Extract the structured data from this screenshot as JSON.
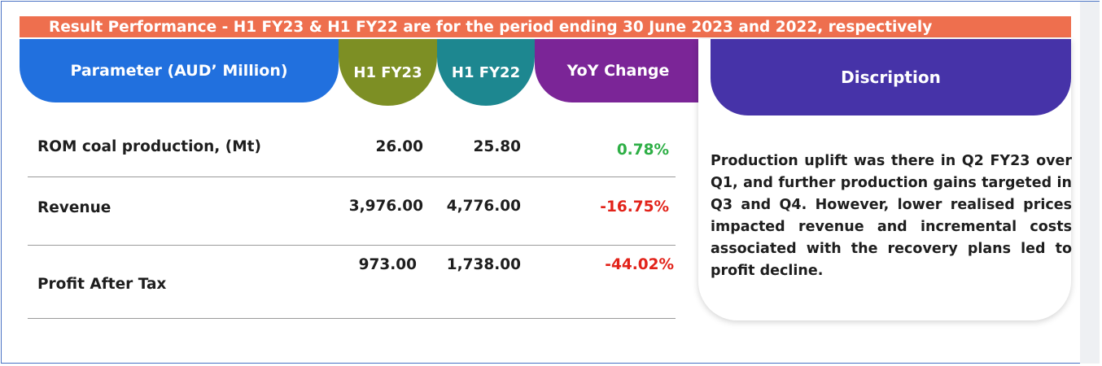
{
  "banner": {
    "text": "Result Performance - H1 FY23 & H1 FY22 are for the period ending 30 June 2023 and 2022, respectively"
  },
  "headers": {
    "parameter": "Parameter (AUD’ Million)",
    "h1fy23": "H1 FY23",
    "h1fy22": "H1 FY22",
    "yoy": "YoY Change",
    "description": "Discription"
  },
  "rows": [
    {
      "parameter": "ROM coal production, (Mt)",
      "h1fy23": "26.00",
      "h1fy22": "25.80",
      "yoy": "0.78%"
    },
    {
      "parameter": "Revenue",
      "h1fy23": "3,976.00",
      "h1fy22": "4,776.00",
      "yoy": "-16.75%"
    },
    {
      "parameter": "Profit After Tax",
      "h1fy23": "973.00",
      "h1fy22": "1,738.00",
      "yoy": "-44.02%"
    }
  ],
  "description_text": "Production uplift was there in Q2 FY23 over Q1, and further production gains targeted in Q3 and Q4. However, lower realised prices impacted revenue and incremental costs associated with the recovery plans led to profit decline.",
  "colors": {
    "banner": "#ee6f4e",
    "parameter_header": "#2170de",
    "h1fy23_header": "#7d8f24",
    "h1fy22_header": "#1d8790",
    "yoy_header": "#7b2597",
    "description_header": "#4633a8",
    "positive": "#2eaf46",
    "negative": "#e2231a"
  }
}
